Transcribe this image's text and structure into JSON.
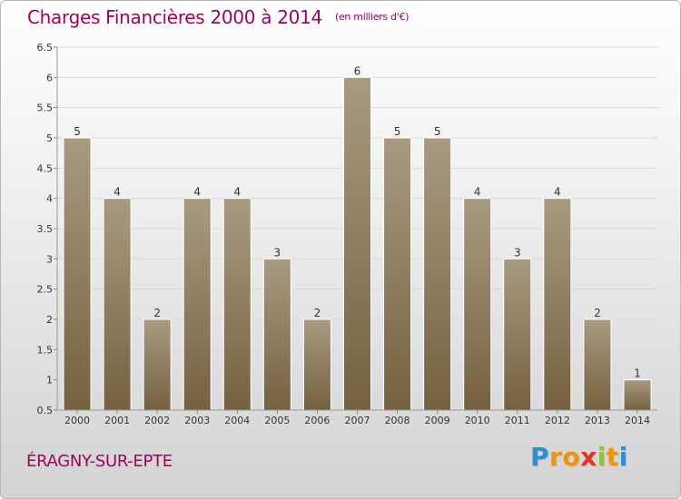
{
  "header": {
    "title": "Charges Financières 2000 à 2014",
    "subtitle": "(en milliers d'€)"
  },
  "footer": {
    "place": "ÉRAGNY-SUR-EPTE",
    "logo_letters": [
      "P",
      "r",
      "o",
      "x",
      "i",
      "t",
      "i"
    ],
    "logo_colors": [
      "#2a8fd6",
      "#f29400",
      "#f29400",
      "#e5332a",
      "#8cc63f",
      "#f29400",
      "#2a8fd6"
    ]
  },
  "chart_data": {
    "type": "bar",
    "title": "Charges Financières 2000 à 2014",
    "subtitle": "(en milliers d'€)",
    "categories": [
      "2000",
      "2001",
      "2002",
      "2003",
      "2004",
      "2005",
      "2006",
      "2007",
      "2008",
      "2009",
      "2010",
      "2011",
      "2012",
      "2013",
      "2014"
    ],
    "values": [
      5,
      4,
      2,
      4,
      4,
      3,
      2,
      6,
      5,
      5,
      4,
      3,
      4,
      2,
      1
    ],
    "data_labels": [
      "5",
      "4",
      "2",
      "4",
      "4",
      "3",
      "2",
      "6",
      "5",
      "5",
      "4",
      "3",
      "4",
      "2",
      "1"
    ],
    "yticks": [
      "0.5",
      "1",
      "1.5",
      "2",
      "2.5",
      "3",
      "3.5",
      "4",
      "4.5",
      "5",
      "5.5",
      "6",
      "6.5"
    ],
    "ylim": [
      0.5,
      6.5
    ],
    "grid": true,
    "bar_color_top": "#a99a80",
    "bar_color_bottom": "#75613f"
  }
}
